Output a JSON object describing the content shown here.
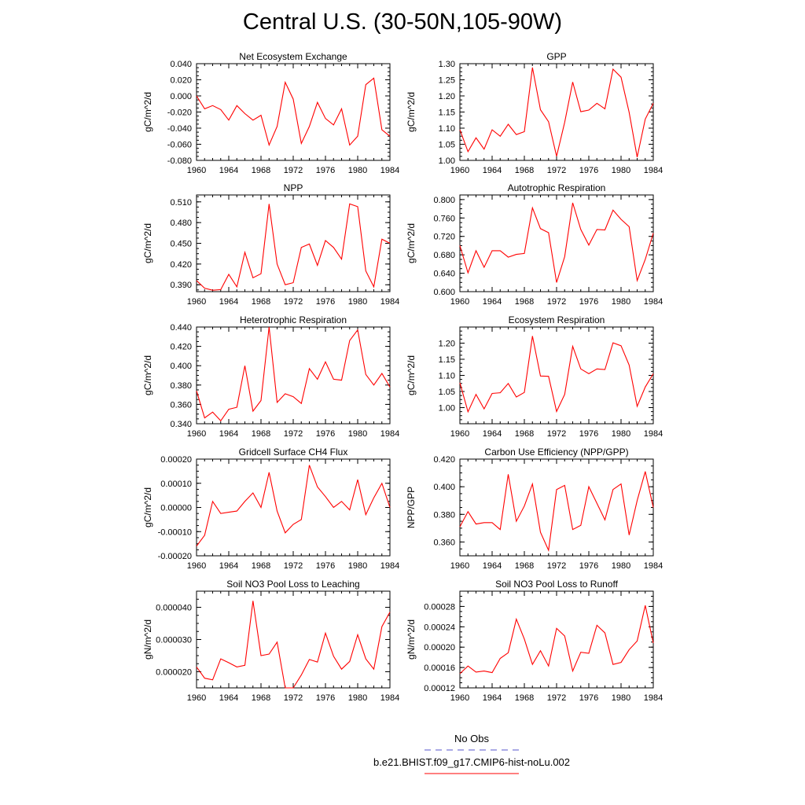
{
  "title": "Central U.S. (30-50N,105-90W)",
  "legend": {
    "items": [
      {
        "label": "No Obs",
        "color": "#5555cc",
        "style": "dashed"
      },
      {
        "label": "b.e21.BHIST.f09_g17.CMIP6-hist-noLu.002",
        "color": "#ff0000",
        "style": "solid"
      }
    ]
  },
  "line_color": "#ff0000",
  "chart_data": [
    {
      "type": "line",
      "title": "Net Ecosystem Exchange",
      "xlabel": "",
      "ylabel": "gC/m^2/d",
      "xlim": [
        1960,
        1984
      ],
      "ylim": [
        -0.08,
        0.04
      ],
      "xticks": [
        "1960",
        "1964",
        "1968",
        "1972",
        "1976",
        "1980",
        "1984"
      ],
      "yticks": [
        "-0.080",
        "-0.060",
        "-0.040",
        "-0.020",
        "0.000",
        "0.020",
        "0.040"
      ],
      "x": [
        1960,
        1961,
        1962,
        1963,
        1964,
        1965,
        1966,
        1967,
        1968,
        1969,
        1970,
        1971,
        1972,
        1973,
        1974,
        1975,
        1976,
        1977,
        1978,
        1979,
        1980,
        1981,
        1982,
        1983,
        1984
      ],
      "values": [
        0.0,
        -0.016,
        -0.012,
        -0.017,
        -0.03,
        -0.012,
        -0.022,
        -0.03,
        -0.024,
        -0.061,
        -0.038,
        0.017,
        -0.004,
        -0.059,
        -0.038,
        -0.008,
        -0.028,
        -0.036,
        -0.016,
        -0.061,
        -0.05,
        0.014,
        0.022,
        -0.042,
        -0.05
      ]
    },
    {
      "type": "line",
      "title": "GPP",
      "xlabel": "",
      "ylabel": "gC/m^2/d",
      "xlim": [
        1960,
        1984
      ],
      "ylim": [
        1.0,
        1.3
      ],
      "xticks": [
        "1960",
        "1964",
        "1968",
        "1972",
        "1976",
        "1980",
        "1984"
      ],
      "yticks": [
        "1.00",
        "1.05",
        "1.10",
        "1.15",
        "1.20",
        "1.25",
        "1.30"
      ],
      "x": [
        1960,
        1961,
        1962,
        1963,
        1964,
        1965,
        1966,
        1967,
        1968,
        1969,
        1970,
        1971,
        1972,
        1973,
        1974,
        1975,
        1976,
        1977,
        1978,
        1979,
        1980,
        1981,
        1982,
        1983,
        1984
      ],
      "values": [
        1.095,
        1.027,
        1.07,
        1.035,
        1.095,
        1.075,
        1.112,
        1.08,
        1.089,
        1.288,
        1.157,
        1.12,
        1.013,
        1.118,
        1.243,
        1.151,
        1.156,
        1.177,
        1.16,
        1.283,
        1.258,
        1.149,
        1.01,
        1.128,
        1.177
      ]
    },
    {
      "type": "line",
      "title": "NPP",
      "xlabel": "",
      "ylabel": "gC/m^2/d",
      "xlim": [
        1960,
        1984
      ],
      "ylim": [
        0.38,
        0.52
      ],
      "xticks": [
        "1960",
        "1964",
        "1968",
        "1972",
        "1976",
        "1980",
        "1984"
      ],
      "yticks": [
        "0.390",
        "0.420",
        "0.450",
        "0.480",
        "0.510"
      ],
      "x": [
        1960,
        1961,
        1962,
        1963,
        1964,
        1965,
        1966,
        1967,
        1968,
        1969,
        1970,
        1971,
        1972,
        1973,
        1974,
        1975,
        1976,
        1977,
        1978,
        1979,
        1980,
        1981,
        1982,
        1983,
        1984
      ],
      "values": [
        0.396,
        0.385,
        0.382,
        0.383,
        0.405,
        0.387,
        0.437,
        0.4,
        0.406,
        0.507,
        0.42,
        0.39,
        0.393,
        0.444,
        0.449,
        0.418,
        0.454,
        0.444,
        0.427,
        0.507,
        0.503,
        0.41,
        0.387,
        0.456,
        0.45
      ]
    },
    {
      "type": "line",
      "title": "Autotrophic Respiration",
      "xlabel": "",
      "ylabel": "gC/m^2/d",
      "xlim": [
        1960,
        1984
      ],
      "ylim": [
        0.6,
        0.81
      ],
      "xticks": [
        "1960",
        "1964",
        "1968",
        "1972",
        "1976",
        "1980",
        "1984"
      ],
      "yticks": [
        "0.600",
        "0.640",
        "0.680",
        "0.720",
        "0.760",
        "0.800"
      ],
      "x": [
        1960,
        1961,
        1962,
        1963,
        1964,
        1965,
        1966,
        1967,
        1968,
        1969,
        1970,
        1971,
        1972,
        1973,
        1974,
        1975,
        1976,
        1977,
        1978,
        1979,
        1980,
        1981,
        1982,
        1983,
        1984
      ],
      "values": [
        0.7,
        0.641,
        0.689,
        0.653,
        0.689,
        0.689,
        0.675,
        0.681,
        0.683,
        0.782,
        0.737,
        0.728,
        0.62,
        0.676,
        0.793,
        0.735,
        0.701,
        0.735,
        0.734,
        0.777,
        0.757,
        0.741,
        0.624,
        0.67,
        0.727
      ]
    },
    {
      "type": "line",
      "title": "Heterotrophic Respiration",
      "xlabel": "",
      "ylabel": "gC/m^2/d",
      "xlim": [
        1960,
        1984
      ],
      "ylim": [
        0.34,
        0.44
      ],
      "xticks": [
        "1960",
        "1964",
        "1968",
        "1972",
        "1976",
        "1980",
        "1984"
      ],
      "yticks": [
        "0.340",
        "0.360",
        "0.380",
        "0.400",
        "0.420",
        "0.440"
      ],
      "x": [
        1960,
        1961,
        1962,
        1963,
        1964,
        1965,
        1966,
        1967,
        1968,
        1969,
        1970,
        1971,
        1972,
        1973,
        1974,
        1975,
        1976,
        1977,
        1978,
        1979,
        1980,
        1981,
        1982,
        1983,
        1984
      ],
      "values": [
        0.374,
        0.346,
        0.352,
        0.343,
        0.355,
        0.357,
        0.4,
        0.353,
        0.364,
        0.44,
        0.362,
        0.371,
        0.368,
        0.361,
        0.397,
        0.386,
        0.404,
        0.386,
        0.385,
        0.426,
        0.437,
        0.391,
        0.38,
        0.392,
        0.378
      ]
    },
    {
      "type": "line",
      "title": "Ecosystem Respiration",
      "xlabel": "",
      "ylabel": "gC/m^2/d",
      "xlim": [
        1960,
        1984
      ],
      "ylim": [
        0.95,
        1.25
      ],
      "xticks": [
        "1960",
        "1964",
        "1968",
        "1972",
        "1976",
        "1980",
        "1984"
      ],
      "yticks": [
        "1.00",
        "1.05",
        "1.10",
        "1.15",
        "1.20"
      ],
      "x": [
        1960,
        1961,
        1962,
        1963,
        1964,
        1965,
        1966,
        1967,
        1968,
        1969,
        1970,
        1971,
        1972,
        1973,
        1974,
        1975,
        1976,
        1977,
        1978,
        1979,
        1980,
        1981,
        1982,
        1983,
        1984
      ],
      "values": [
        1.077,
        0.987,
        1.041,
        0.996,
        1.044,
        1.046,
        1.075,
        1.033,
        1.047,
        1.222,
        1.098,
        1.097,
        0.988,
        1.041,
        1.19,
        1.12,
        1.105,
        1.12,
        1.118,
        1.201,
        1.192,
        1.132,
        1.004,
        1.064,
        1.105
      ]
    },
    {
      "type": "line",
      "title": "Gridcell Surface CH4 Flux",
      "xlabel": "",
      "ylabel": "gC/m^2/d",
      "xlim": [
        1960,
        1984
      ],
      "ylim": [
        -0.0002,
        0.0002
      ],
      "xticks": [
        "1960",
        "1964",
        "1968",
        "1972",
        "1976",
        "1980",
        "1984"
      ],
      "yticks": [
        "-0.00020",
        "-0.00010",
        "0.00000",
        "0.00010",
        "0.00020"
      ],
      "x": [
        1960,
        1961,
        1962,
        1963,
        1964,
        1965,
        1966,
        1967,
        1968,
        1969,
        1970,
        1971,
        1972,
        1973,
        1974,
        1975,
        1976,
        1977,
        1978,
        1979,
        1980,
        1981,
        1982,
        1983,
        1984
      ],
      "values": [
        -0.00016,
        -0.000115,
        2.5e-05,
        -2.5e-05,
        -2e-05,
        -1.5e-05,
        2.5e-05,
        6e-05,
        0.0,
        0.000145,
        -1.5e-05,
        -0.000105,
        -7e-05,
        -5e-05,
        0.000175,
        8.5e-05,
        4.5e-05,
        0.0,
        2.5e-05,
        -1e-05,
        0.000115,
        -3e-05,
        4e-05,
        0.0001,
        0.0
      ]
    },
    {
      "type": "line",
      "title": "Carbon Use Efficiency (NPP/GPP)",
      "xlabel": "",
      "ylabel": "NPP/GPP",
      "xlim": [
        1960,
        1984
      ],
      "ylim": [
        0.35,
        0.42
      ],
      "xticks": [
        "1960",
        "1964",
        "1968",
        "1972",
        "1976",
        "1980",
        "1984"
      ],
      "yticks": [
        "0.360",
        "0.380",
        "0.400",
        "0.420"
      ],
      "x": [
        1960,
        1961,
        1962,
        1963,
        1964,
        1965,
        1966,
        1967,
        1968,
        1969,
        1970,
        1971,
        1972,
        1973,
        1974,
        1975,
        1976,
        1977,
        1978,
        1979,
        1980,
        1981,
        1982,
        1983,
        1984
      ],
      "values": [
        0.371,
        0.382,
        0.373,
        0.374,
        0.374,
        0.369,
        0.409,
        0.375,
        0.386,
        0.402,
        0.367,
        0.354,
        0.398,
        0.401,
        0.369,
        0.372,
        0.4,
        0.388,
        0.376,
        0.398,
        0.402,
        0.365,
        0.39,
        0.411,
        0.385
      ]
    },
    {
      "type": "line",
      "title": "Soil NO3 Pool Loss to Leaching",
      "xlabel": "",
      "ylabel": "gN/m^2/d",
      "xlim": [
        1960,
        1984
      ],
      "ylim": [
        1.5e-05,
        4.5e-05
      ],
      "xticks": [
        "1960",
        "1964",
        "1968",
        "1972",
        "1976",
        "1980",
        "1984"
      ],
      "yticks": [
        "0.000020",
        "0.000030",
        "0.000040"
      ],
      "x": [
        1960,
        1961,
        1962,
        1963,
        1964,
        1965,
        1966,
        1967,
        1968,
        1969,
        1970,
        1971,
        1972,
        1973,
        1974,
        1975,
        1976,
        1977,
        1978,
        1979,
        1980,
        1981,
        1982,
        1983,
        1984
      ],
      "values": [
        2.15e-05,
        1.8e-05,
        1.75e-05,
        2.4e-05,
        2.28e-05,
        2.15e-05,
        2.2e-05,
        4.2e-05,
        2.5e-05,
        2.55e-05,
        2.92e-05,
        1.5e-05,
        1.5e-05,
        1.9e-05,
        2.38e-05,
        2.3e-05,
        3.2e-05,
        2.48e-05,
        2.08e-05,
        2.32e-05,
        3.15e-05,
        2.4e-05,
        2.08e-05,
        3.4e-05,
        3.85e-05
      ]
    },
    {
      "type": "line",
      "title": "Soil NO3 Pool Loss to Runoff",
      "xlabel": "",
      "ylabel": "gN/m^2/d",
      "xlim": [
        1960,
        1984
      ],
      "ylim": [
        0.00012,
        0.00031
      ],
      "xticks": [
        "1960",
        "1964",
        "1968",
        "1972",
        "1976",
        "1980",
        "1984"
      ],
      "yticks": [
        "0.00012",
        "0.00016",
        "0.00020",
        "0.00024",
        "0.00028"
      ],
      "x": [
        1960,
        1961,
        1962,
        1963,
        1964,
        1965,
        1966,
        1967,
        1968,
        1969,
        1970,
        1971,
        1972,
        1973,
        1974,
        1975,
        1976,
        1977,
        1978,
        1979,
        1980,
        1981,
        1982,
        1983,
        1984
      ],
      "values": [
        0.000148,
        0.000163,
        0.000151,
        0.000153,
        0.00015,
        0.000178,
        0.000189,
        0.000255,
        0.000216,
        0.000166,
        0.000193,
        0.000163,
        0.000237,
        0.000222,
        0.000153,
        0.00019,
        0.000188,
        0.000243,
        0.000228,
        0.000166,
        0.00017,
        0.000195,
        0.000212,
        0.000282,
        0.000208
      ]
    }
  ]
}
